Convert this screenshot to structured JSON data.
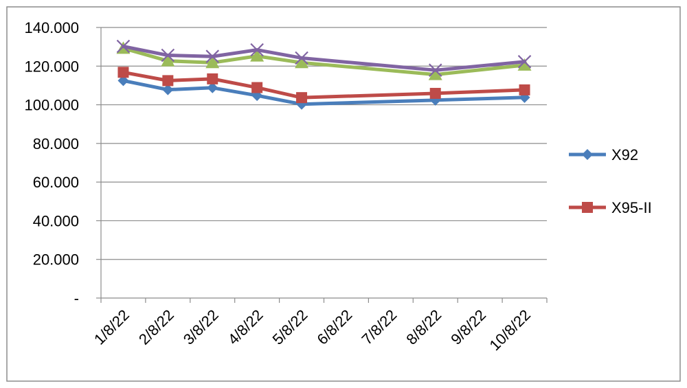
{
  "chart_data": {
    "type": "line",
    "title": "",
    "xlabel": "",
    "ylabel": "",
    "categories": [
      "1/8/22",
      "2/8/22",
      "3/8/22",
      "4/8/22",
      "5/8/22",
      "6/8/22",
      "7/8/22",
      "8/8/22",
      "9/8/22",
      "10/8/22"
    ],
    "y_tick_labels": [
      "-",
      "20.000",
      "40.000",
      "60.000",
      "80.000",
      "100.000",
      "120.000",
      "140.000"
    ],
    "ylim": [
      0,
      140000
    ],
    "grid": true,
    "legend_position": "right",
    "series": [
      {
        "name": "X92",
        "color": "#4a7ebb",
        "marker": "diamond",
        "values": [
          112500,
          107800,
          108800,
          104800,
          100300,
          null,
          null,
          102400,
          null,
          103800
        ]
      },
      {
        "name": "X95-II",
        "color": "#be4b48",
        "marker": "square",
        "values": [
          116800,
          112500,
          113400,
          108900,
          103700,
          null,
          null,
          105900,
          null,
          107700
        ]
      },
      {
        "color": "#9bbb59",
        "marker": "triangle",
        "values": [
          129200,
          122700,
          121800,
          125200,
          121800,
          null,
          null,
          115600,
          null,
          120500
        ]
      },
      {
        "color": "#8064a2",
        "marker": "x",
        "values": [
          130200,
          125600,
          125000,
          128400,
          124200,
          null,
          null,
          117900,
          null,
          122300
        ]
      }
    ]
  }
}
